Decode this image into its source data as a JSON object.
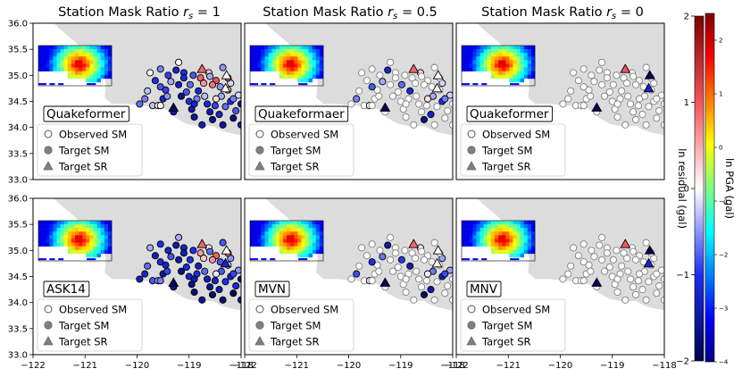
{
  "chart_data": {
    "type": "scatter",
    "description_units": "longitude (deg) vs latitude (deg); color = ln residual (gal) or ln PGA (gal)",
    "columns": [
      {
        "title": "Station Mask Ratio",
        "rs_value": "1"
      },
      {
        "title": "Station Mask Ratio",
        "rs_value": "0.5"
      },
      {
        "title": "Station Mask Ratio",
        "rs_value": "0"
      }
    ],
    "panels": [
      {
        "row": 0,
        "col": 0,
        "label": "Quakeformer",
        "rs": 1
      },
      {
        "row": 0,
        "col": 1,
        "label": "Quakeformaer",
        "rs": 0.5
      },
      {
        "row": 0,
        "col": 2,
        "label": "Quakeformer",
        "rs": 0
      },
      {
        "row": 1,
        "col": 0,
        "label": "ASK14",
        "rs": 1
      },
      {
        "row": 1,
        "col": 1,
        "label": "MVN",
        "rs": 0.5
      },
      {
        "row": 1,
        "col": 2,
        "label": "MNV",
        "rs": 0
      }
    ],
    "xlim": [
      -122,
      -118
    ],
    "ylim": [
      33.0,
      36.0
    ],
    "xticks": [
      "−122",
      "−121",
      "−120",
      "−119",
      "−118"
    ],
    "yticks": [
      "33.0",
      "33.5",
      "34.0",
      "34.5",
      "35.0",
      "35.5",
      "36.0"
    ],
    "legend": [
      {
        "marker": "circle-open",
        "label": "Observed SM"
      },
      {
        "marker": "circle-filled",
        "label": "Target SM"
      },
      {
        "marker": "triangle-filled",
        "label": "Target SR"
      }
    ],
    "colorbar_residual": {
      "label": "ln residual (gal)",
      "range": [
        -2,
        2
      ],
      "ticks": [
        "−2",
        "−1",
        "0",
        "1",
        "2"
      ]
    },
    "colorbar_pga": {
      "label": "ln PGA (gal)",
      "range": [
        -4,
        2.5
      ],
      "ticks": [
        "−4",
        "−3",
        "−2",
        "−1",
        "0",
        "1",
        "2"
      ]
    },
    "epicenter": {
      "lon": -121.1,
      "lat": 35.1
    },
    "stations": [
      [
        -119.95,
        34.45
      ],
      [
        -119.85,
        34.55
      ],
      [
        -119.7,
        34.42
      ],
      [
        -119.6,
        34.42
      ],
      [
        -119.55,
        34.42
      ],
      [
        -119.5,
        34.55
      ],
      [
        -119.45,
        34.72
      ],
      [
        -119.42,
        34.6
      ],
      [
        -119.35,
        34.88
      ],
      [
        -119.2,
        34.82
      ],
      [
        -119.15,
        34.6
      ],
      [
        -119.05,
        34.68
      ],
      [
        -119.0,
        34.5
      ],
      [
        -118.95,
        34.35
      ],
      [
        -118.9,
        34.2
      ],
      [
        -118.85,
        34.55
      ],
      [
        -118.82,
        34.7
      ],
      [
        -118.78,
        34.95
      ],
      [
        -118.72,
        34.85
      ],
      [
        -118.7,
        34.6
      ],
      [
        -118.65,
        34.45
      ],
      [
        -118.6,
        34.3
      ],
      [
        -118.55,
        34.15
      ],
      [
        -118.5,
        34.42
      ],
      [
        -118.48,
        34.9
      ],
      [
        -118.42,
        34.25
      ],
      [
        -118.38,
        34.6
      ],
      [
        -118.35,
        34.05
      ],
      [
        -118.3,
        34.4
      ],
      [
        -118.25,
        34.72
      ],
      [
        -118.2,
        34.5
      ],
      [
        -118.15,
        34.18
      ],
      [
        -118.1,
        34.32
      ],
      [
        -118.05,
        34.62
      ],
      [
        -118.0,
        34.05
      ],
      [
        -119.75,
        35.05
      ],
      [
        -119.55,
        35.12
      ],
      [
        -119.4,
        35.0
      ],
      [
        -119.25,
        35.1
      ],
      [
        -119.1,
        35.05
      ],
      [
        -118.92,
        35.0
      ],
      [
        -118.62,
        35.05
      ],
      [
        -118.35,
        35.15
      ],
      [
        -119.65,
        34.9
      ],
      [
        -118.98,
        34.82
      ],
      [
        -118.55,
        34.82
      ],
      [
        -118.2,
        34.85
      ],
      [
        -119.3,
        34.3
      ],
      [
        -118.75,
        34.05
      ],
      [
        -118.4,
        34.78
      ],
      [
        -119.8,
        34.7
      ],
      [
        -119.1,
        34.95
      ],
      [
        -118.15,
        34.55
      ],
      [
        -118.25,
        34.95
      ],
      [
        -119.55,
        34.78
      ],
      [
        -118.6,
        34.98
      ],
      [
        -118.9,
        34.45
      ],
      [
        -118.48,
        34.55
      ],
      [
        -118.0,
        34.45
      ],
      [
        -119.2,
        35.25
      ]
    ],
    "sr_stations": [
      [
        -119.3,
        34.38
      ],
      [
        -118.75,
        35.12
      ],
      [
        -118.28,
        35.0
      ],
      [
        -118.3,
        34.75
      ]
    ],
    "target_idx_rs05": [
      1,
      3,
      8,
      16,
      22,
      25,
      26,
      30,
      33,
      38,
      41,
      44,
      46,
      52,
      54,
      57
    ],
    "target_idx_rs0": [],
    "residuals_quakeformer": [
      -0.7,
      -0.6,
      -0.3,
      0.1,
      0.0,
      -1.2,
      -0.9,
      -0.5,
      -0.4,
      -1.3,
      -1.6,
      -0.8,
      -1.0,
      -1.4,
      -1.5,
      -0.6,
      -1.1,
      0.9,
      0.6,
      -0.3,
      -1.1,
      -1.4,
      -1.6,
      -0.9,
      1.0,
      -1.2,
      -0.4,
      -1.5,
      -0.7,
      0.5,
      -1.0,
      -1.7,
      -0.8,
      -0.2,
      -1.3,
      0.0,
      -0.6,
      -0.9,
      -1.2,
      -1.0,
      -0.8,
      0.3,
      -0.5,
      -1.0,
      -0.7,
      0.8,
      -0.2,
      -1.4,
      -1.3,
      -0.5,
      -0.3,
      -1.1,
      -0.6,
      1.0,
      -0.8,
      -0.4,
      -1.2,
      0.2,
      -1.5,
      0.0
    ],
    "residuals_ask14": [
      -1.3,
      -1.2,
      -0.8,
      -0.5,
      -0.6,
      -1.5,
      -1.2,
      -0.9,
      -0.8,
      -1.4,
      -1.7,
      -1.1,
      -1.2,
      -1.6,
      -1.7,
      -1.0,
      -1.3,
      0.6,
      0.3,
      -0.7,
      -1.3,
      -1.6,
      -1.8,
      -1.2,
      0.9,
      -1.4,
      -0.8,
      -1.7,
      -1.0,
      0.2,
      -1.2,
      -1.9,
      -1.1,
      -0.5,
      -1.5,
      -0.4,
      -1.0,
      -1.2,
      -1.4,
      -1.2,
      -1.0,
      0.0,
      -0.8,
      -1.3,
      -1.0,
      0.6,
      -0.5,
      -1.6,
      -1.5,
      -0.8,
      -0.7,
      -1.3,
      -0.9,
      0.8,
      -1.1,
      -0.7,
      -1.4,
      -0.1,
      -1.7,
      -0.4
    ],
    "sr_res_rs1": [
      -1.9,
      0.9,
      0.0,
      0.0
    ],
    "sr_res_ask14": [
      -1.9,
      0.9,
      0.0,
      -1.2
    ],
    "sr_res_rs0": [
      -1.9,
      1.0,
      -1.9,
      -1.2
    ]
  }
}
